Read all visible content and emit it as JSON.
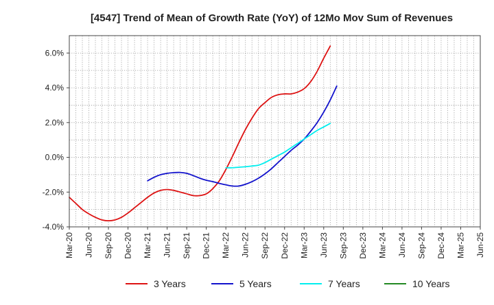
{
  "chart_data": {
    "type": "line",
    "title": "[4547]  Trend of Mean of Growth Rate (YoY) of 12Mo Mov Sum of Revenues",
    "xlabel": "",
    "ylabel": "",
    "ylim": [
      -4.0,
      7.0
    ],
    "y_ticks": [
      -4.0,
      -2.0,
      0.0,
      2.0,
      4.0,
      6.0
    ],
    "y_tick_labels": [
      "-4.0%",
      "-2.0%",
      "0.0%",
      "2.0%",
      "4.0%",
      "6.0%"
    ],
    "x_tick_labels": [
      "Mar-20",
      "Jun-20",
      "Sep-20",
      "Dec-20",
      "Mar-21",
      "Jun-21",
      "Sep-21",
      "Dec-21",
      "Mar-22",
      "Jun-22",
      "Sep-22",
      "Dec-22",
      "Mar-23",
      "Jun-23",
      "Sep-23",
      "Dec-23",
      "Mar-24",
      "Jun-24",
      "Sep-24",
      "Dec-24",
      "Mar-25",
      "Jun-25"
    ],
    "grid": true,
    "legend_position": "bottom",
    "series": [
      {
        "name": "3 Years",
        "color": "#dd1111",
        "start_index": 0,
        "values": [
          -2.3,
          -2.65,
          -3.0,
          -3.25,
          -3.45,
          -3.6,
          -3.65,
          -3.6,
          -3.45,
          -3.2,
          -2.9,
          -2.6,
          -2.3,
          -2.05,
          -1.9,
          -1.85,
          -1.9,
          -2.0,
          -2.1,
          -2.2,
          -2.2,
          -2.1,
          -1.8,
          -1.35,
          -0.7,
          0.05,
          0.85,
          1.6,
          2.25,
          2.8,
          3.15,
          3.45,
          3.6,
          3.65,
          3.65,
          3.75,
          3.95,
          4.35,
          4.95,
          5.7,
          6.4
        ]
      },
      {
        "name": "5 Years",
        "color": "#1111cc",
        "start_index": 12,
        "values": [
          -1.35,
          -1.15,
          -1.0,
          -0.92,
          -0.88,
          -0.87,
          -0.92,
          -1.05,
          -1.2,
          -1.32,
          -1.4,
          -1.5,
          -1.58,
          -1.65,
          -1.65,
          -1.55,
          -1.4,
          -1.2,
          -0.95,
          -0.65,
          -0.3,
          0.05,
          0.4,
          0.7,
          1.05,
          1.5,
          2.0,
          2.6,
          3.3,
          4.1
        ]
      },
      {
        "name": "7 Years",
        "color": "#00eeee",
        "start_index": 24,
        "values": [
          -0.6,
          -0.6,
          -0.57,
          -0.54,
          -0.5,
          -0.45,
          -0.3,
          -0.1,
          0.1,
          0.3,
          0.55,
          0.8,
          1.05,
          1.3,
          1.55,
          1.75,
          1.95
        ]
      },
      {
        "name": "10 Years",
        "color": "#228822",
        "start_index": 0,
        "values": []
      }
    ]
  }
}
